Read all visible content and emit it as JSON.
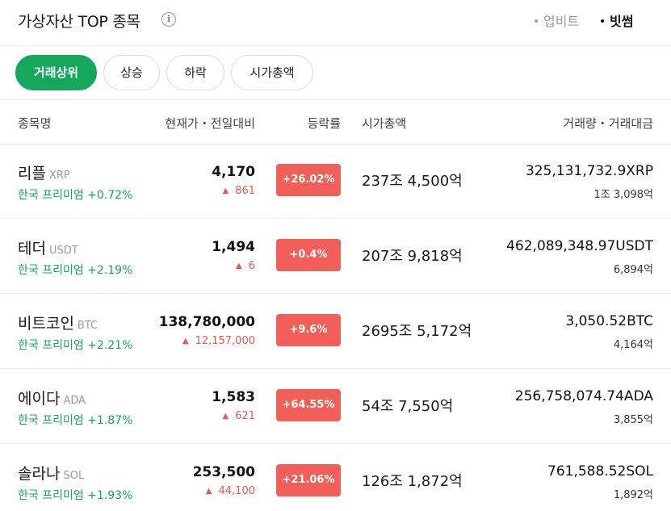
{
  "header": {
    "title": "가상자산 TOP 종목",
    "info_icon": "info-icon",
    "exchanges": [
      {
        "label": "업비트",
        "selected": false
      },
      {
        "label": "빗썸",
        "selected": true
      }
    ]
  },
  "tabs": [
    {
      "label": "거래상위",
      "active": true
    },
    {
      "label": "상승",
      "active": false
    },
    {
      "label": "하락",
      "active": false
    },
    {
      "label": "시가총액",
      "active": false
    }
  ],
  "columns": {
    "name": "종목명",
    "price": "현재가・전일대비",
    "rate": "등락률",
    "cap": "시가총액",
    "volume": "거래량・거래대금"
  },
  "colors": {
    "accent": "#13a85b",
    "rise": "#f0564f",
    "rate_badge": "#f25f58"
  },
  "rows": [
    {
      "name": "리플",
      "symbol": "XRP",
      "premium": "한국 프리미엄 +0.72%",
      "price": "4,170",
      "change": "861",
      "rate": "+26.02%",
      "cap": "237조 4,500억",
      "volume": "325,131,732.9XRP",
      "amount": "1조 3,098억"
    },
    {
      "name": "테더",
      "symbol": "USDT",
      "premium": "한국 프리미엄 +2.19%",
      "price": "1,494",
      "change": "6",
      "rate": "+0.4%",
      "cap": "207조 9,818억",
      "volume": "462,089,348.97USDT",
      "amount": "6,894억"
    },
    {
      "name": "비트코인",
      "symbol": "BTC",
      "premium": "한국 프리미엄 +2.21%",
      "price": "138,780,000",
      "change": "12,157,000",
      "rate": "+9.6%",
      "cap": "2695조 5,172억",
      "volume": "3,050.52BTC",
      "amount": "4,164억"
    },
    {
      "name": "에이다",
      "symbol": "ADA",
      "premium": "한국 프리미엄 +1.87%",
      "price": "1,583",
      "change": "621",
      "rate": "+64.55%",
      "cap": "54조 7,550억",
      "volume": "256,758,074.74ADA",
      "amount": "3,855억"
    },
    {
      "name": "솔라나",
      "symbol": "SOL",
      "premium": "한국 프리미엄 +1.93%",
      "price": "253,500",
      "change": "44,100",
      "rate": "+21.06%",
      "cap": "126조 1,872억",
      "volume": "761,588.52SOL",
      "amount": "1,892억"
    }
  ]
}
